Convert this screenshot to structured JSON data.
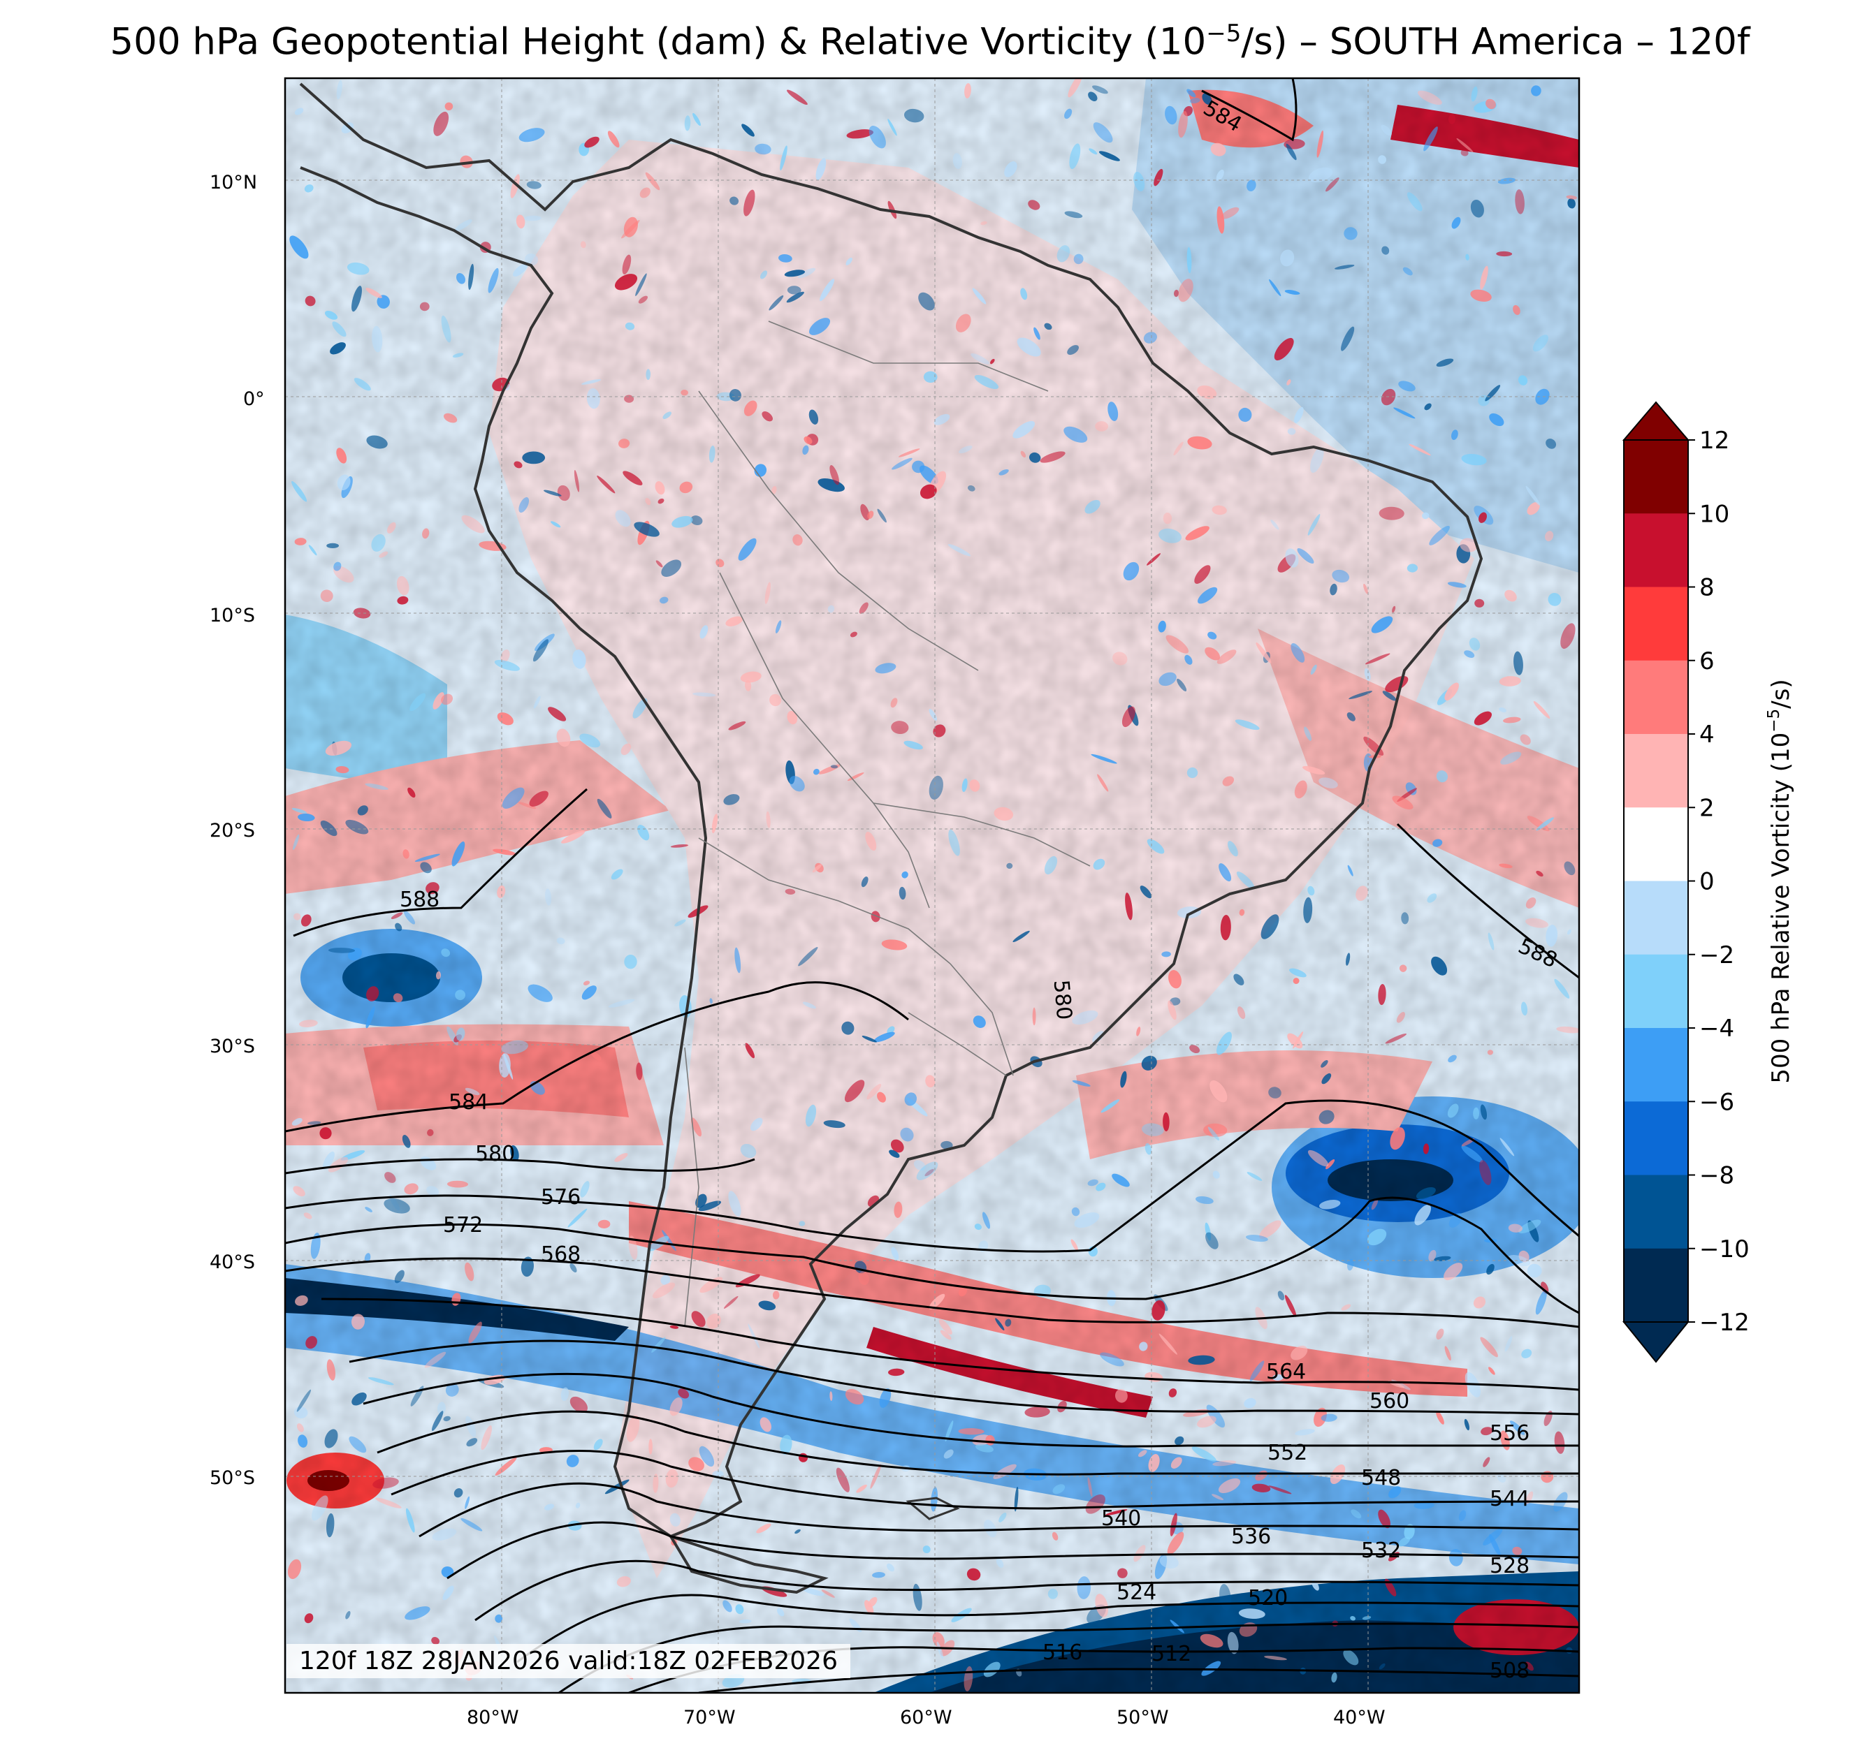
{
  "title": {
    "prefix": "500 hPa Geopotential Height (dam) & Relative Vorticity (10",
    "exponent": "−5",
    "suffix": "/s) – SOUTH America – 120f"
  },
  "run_info": "120f 18Z 28JAN2026 valid:18Z 02FEB2026",
  "axes": {
    "lat_labels": [
      "10°N",
      "0°",
      "10°S",
      "20°S",
      "30°S",
      "40°S",
      "50°S"
    ],
    "lon_labels": [
      "80°W",
      "70°W",
      "60°W",
      "50°W",
      "40°W"
    ]
  },
  "colorbar": {
    "label_prefix": "500 hPa Relative Vorticity (10",
    "label_exponent": "−5",
    "label_suffix": "/s)",
    "ticks": [
      "12",
      "10",
      "8",
      "6",
      "4",
      "2",
      "0",
      "−2",
      "−4",
      "−6",
      "−8",
      "−10",
      "−12"
    ],
    "colors_top_to_bottom": [
      "#800000",
      "#c8102e",
      "#ff3b3b",
      "#ff7b7b",
      "#ffb4b4",
      "#ffffff",
      "#b7dcfa",
      "#7fd0fa",
      "#3d9ef5",
      "#0c6ad6",
      "#005494",
      "#002a52"
    ]
  },
  "height_contour_labels": [
    "588",
    "588",
    "584",
    "584",
    "580",
    "576",
    "572",
    "568",
    "564",
    "560",
    "556",
    "552",
    "548",
    "544",
    "540",
    "536",
    "532",
    "528",
    "524",
    "520",
    "516",
    "512",
    "508",
    "580"
  ],
  "colors": {
    "land_base": "#fbe6ea",
    "ocean_base": "#dcefff",
    "coastline": "#333333",
    "contour": "#000000"
  }
}
